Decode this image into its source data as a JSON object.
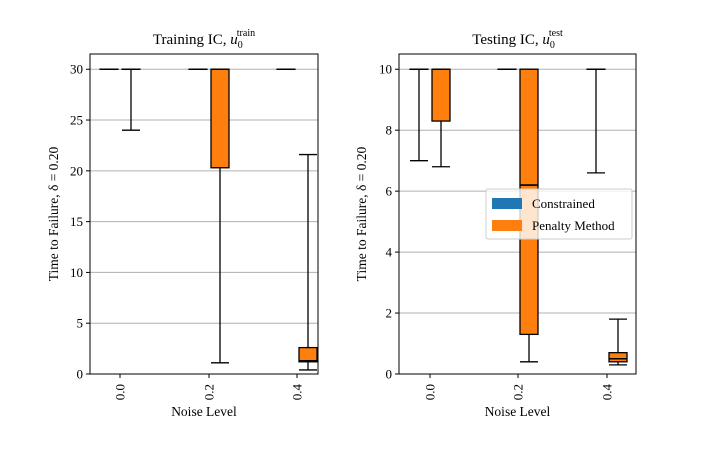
{
  "chart_data": [
    {
      "type": "box",
      "title": "Training IC, u0train",
      "title_parts": {
        "main": "Training IC, ",
        "var": "u",
        "sub": "0",
        "sup": "train"
      },
      "xlabel": "Noise Level",
      "ylabel": "Time to Failure, δ = 0.20",
      "ylim": [
        0,
        31.5
      ],
      "yticks": [
        0,
        5,
        10,
        15,
        20,
        25,
        30
      ],
      "ytick_labels": [
        "0",
        "5",
        "10",
        "15",
        "20",
        "25",
        "30"
      ],
      "grid": "horizontal",
      "categories": [
        "0.0",
        "0.2",
        "0.4"
      ],
      "series": [
        {
          "name": "Constrained",
          "color": "#1f77b4",
          "boxes": [
            {
              "whislo": 30,
              "q1": 30,
              "med": 30,
              "q3": 30,
              "whishi": 30
            },
            {
              "whislo": 30,
              "q1": 30,
              "med": 30,
              "q3": 30,
              "whishi": 30
            },
            {
              "whislo": 30,
              "q1": 30,
              "med": 30,
              "q3": 30,
              "whishi": 30
            }
          ]
        },
        {
          "name": "Penalty Method",
          "color": "#ff7f0e",
          "boxes": [
            {
              "whislo": 24,
              "q1": 30,
              "med": 30,
              "q3": 30,
              "whishi": 30
            },
            {
              "whislo": 1.1,
              "q1": 20.3,
              "med": 30,
              "q3": 30,
              "whishi": 30
            },
            {
              "whislo": 0.4,
              "q1": 1.2,
              "med": 1.3,
              "q3": 2.6,
              "whishi": 21.6
            }
          ]
        }
      ]
    },
    {
      "type": "box",
      "title": "Testing IC, u0test",
      "title_parts": {
        "main": "Testing IC, ",
        "var": "u",
        "sub": "0",
        "sup": "test"
      },
      "xlabel": "Noise Level",
      "ylabel": "Time to Failure, δ = 0.20",
      "ylim": [
        0,
        10.5
      ],
      "yticks": [
        0,
        2,
        4,
        6,
        8,
        10
      ],
      "ytick_labels": [
        "0",
        "2",
        "4",
        "6",
        "8",
        "10"
      ],
      "grid": "horizontal",
      "categories": [
        "0.0",
        "0.2",
        "0.4"
      ],
      "series": [
        {
          "name": "Constrained",
          "color": "#1f77b4",
          "boxes": [
            {
              "whislo": 7.0,
              "q1": 10,
              "med": 10,
              "q3": 10,
              "whishi": 10
            },
            {
              "whislo": 10,
              "q1": 10,
              "med": 10,
              "q3": 10,
              "whishi": 10
            },
            {
              "whislo": 6.6,
              "q1": 10,
              "med": 10,
              "q3": 10,
              "whishi": 10
            }
          ]
        },
        {
          "name": "Penalty Method",
          "color": "#ff7f0e",
          "boxes": [
            {
              "whislo": 6.8,
              "q1": 8.3,
              "med": 10,
              "q3": 10,
              "whishi": 10
            },
            {
              "whislo": 0.4,
              "q1": 1.3,
              "med": 6.2,
              "q3": 10,
              "whishi": 10
            },
            {
              "whislo": 0.3,
              "q1": 0.4,
              "med": 0.5,
              "q3": 0.7,
              "whishi": 1.8
            }
          ]
        }
      ]
    }
  ],
  "legend": {
    "placement": "right-center of second panel",
    "items": [
      {
        "label": "Constrained",
        "color": "#1f77b4"
      },
      {
        "label": "Penalty Method",
        "color": "#ff7f0e"
      }
    ]
  }
}
